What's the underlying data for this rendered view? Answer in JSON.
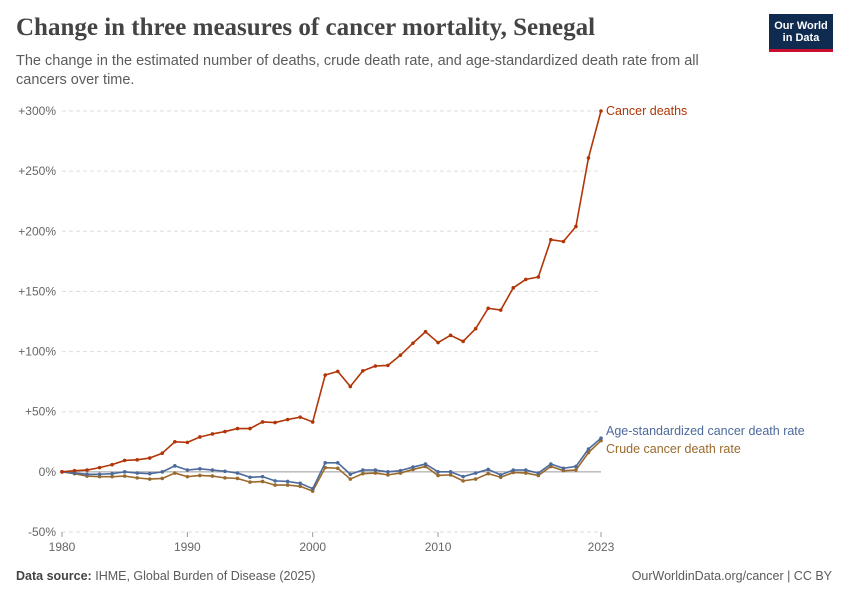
{
  "header": {
    "title": "Change in three measures of cancer mortality, Senegal",
    "subtitle": "The change in the estimated number of deaths, crude death rate, and age-standardized death rate from all cancers over time."
  },
  "logo": {
    "line1": "Our World",
    "line2": "in Data",
    "bg_color": "#0f2b50",
    "accent_color": "#c8102e"
  },
  "footer": {
    "source_label": "Data source:",
    "source_text": "IHME, Global Burden of Disease (2025)",
    "right_text": "OurWorldinData.org/cancer | CC BY"
  },
  "chart_data": {
    "type": "line",
    "x": [
      1980,
      1981,
      1982,
      1983,
      1984,
      1985,
      1986,
      1987,
      1988,
      1989,
      1990,
      1991,
      1992,
      1993,
      1994,
      1995,
      1996,
      1997,
      1998,
      1999,
      2000,
      2001,
      2002,
      2003,
      2004,
      2005,
      2006,
      2007,
      2008,
      2009,
      2010,
      2011,
      2012,
      2013,
      2014,
      2015,
      2016,
      2017,
      2018,
      2019,
      2020,
      2021,
      2022,
      2023
    ],
    "series": [
      {
        "name": "Cancer deaths",
        "color": "#b13507",
        "values": [
          0,
          1,
          1.5,
          3.5,
          6,
          9.5,
          10,
          11.5,
          15.5,
          25,
          24.5,
          29,
          31.5,
          33.5,
          36,
          36,
          41.5,
          41,
          43.5,
          45.5,
          41.5,
          80.5,
          83.5,
          71,
          84,
          88,
          88.5,
          97,
          107,
          116.5,
          107.5,
          113.5,
          108.5,
          119,
          136,
          134.5,
          153,
          160,
          162,
          193,
          191.5,
          204,
          261,
          300
        ]
      },
      {
        "name": "Age-standardized cancer death rate",
        "color": "#4c6a9c",
        "values": [
          0,
          -1,
          -2,
          -2,
          -1.5,
          0,
          -1,
          -1.5,
          0,
          5,
          1.5,
          2.5,
          1.5,
          0.5,
          -1,
          -4.5,
          -4,
          -7.5,
          -8,
          -9.5,
          -14,
          7.5,
          7.5,
          -2,
          1.5,
          1.5,
          0,
          1,
          4,
          6.5,
          0,
          0,
          -4,
          -1,
          2,
          -2.5,
          1.5,
          1.5,
          -1,
          6.5,
          3,
          4.5,
          19,
          28
        ]
      },
      {
        "name": "Crude cancer death rate",
        "color": "#9a6a2c",
        "values": [
          0,
          -1.5,
          -3.5,
          -4,
          -4,
          -3.5,
          -5,
          -6,
          -5.5,
          -1,
          -4,
          -3,
          -3.5,
          -5,
          -5.5,
          -8.5,
          -8,
          -11,
          -11,
          -12,
          -16,
          3.5,
          3,
          -6,
          -1.5,
          -1,
          -2.5,
          -1,
          2,
          4.5,
          -3,
          -2.5,
          -7.5,
          -6,
          -1.5,
          -4.5,
          -0.5,
          -1,
          -3,
          4.5,
          1,
          1.5,
          16,
          26
        ]
      }
    ],
    "y_axis": {
      "ticks": [
        "+300%",
        "+250%",
        "+200%",
        "+150%",
        "+100%",
        "+50%",
        "0%",
        "-50%"
      ],
      "tick_values": [
        300,
        250,
        200,
        150,
        100,
        50,
        0,
        -50
      ],
      "ylim": [
        -50,
        300
      ]
    },
    "x_axis": {
      "ticks": [
        "1980",
        "1990",
        "2000",
        "2010",
        "2023"
      ],
      "tick_values": [
        1980,
        1990,
        2000,
        2010,
        2023
      ],
      "xlim": [
        1980,
        2023
      ]
    },
    "grid": "horizontal-dashed"
  }
}
